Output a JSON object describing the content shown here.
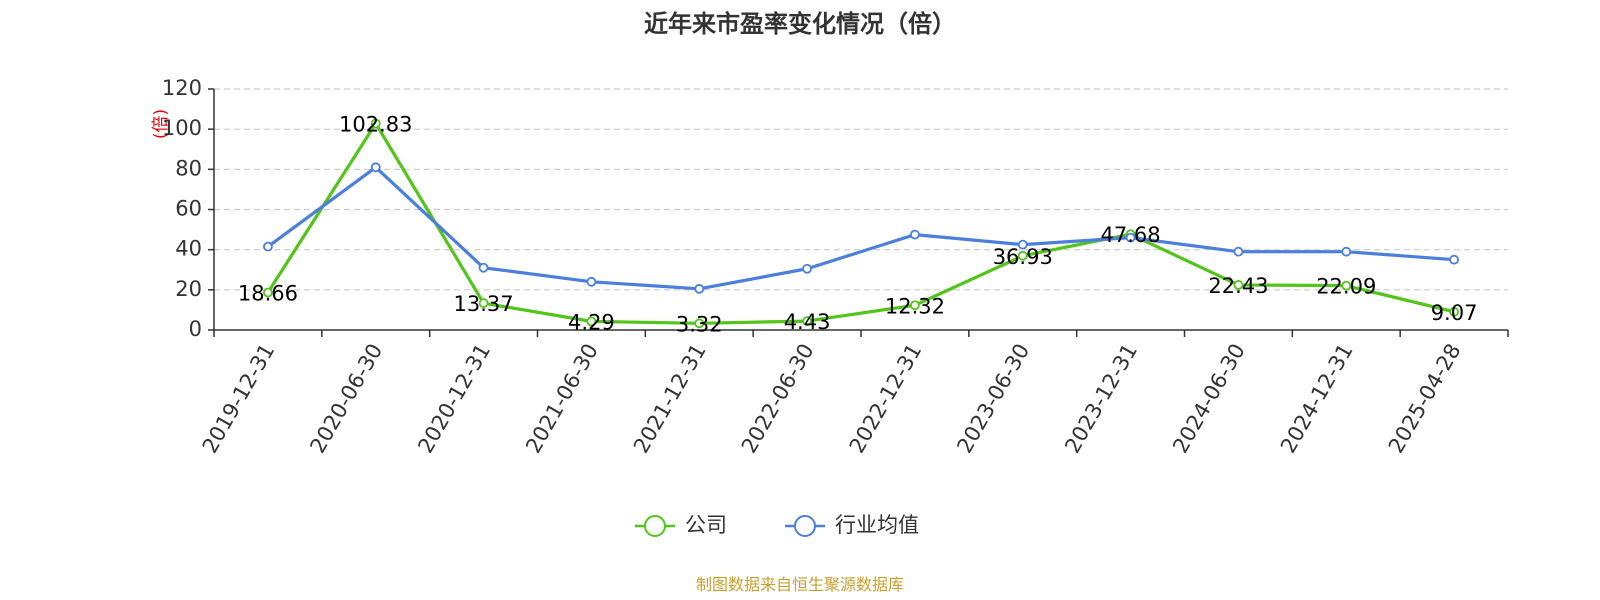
{
  "chart_data": {
    "type": "line",
    "title": "近年来市盈率变化情况（倍）",
    "ylabel": "(倍)",
    "xlabel": "",
    "ylim": [
      0,
      120
    ],
    "yticks": [
      0,
      20,
      40,
      60,
      80,
      100,
      120
    ],
    "grid": true,
    "legend_position": "bottom",
    "categories": [
      "2019-12-31",
      "2020-06-30",
      "2020-12-31",
      "2021-06-30",
      "2021-12-31",
      "2022-06-30",
      "2022-12-31",
      "2023-06-30",
      "2023-12-31",
      "2024-06-30",
      "2024-12-31",
      "2025-04-28"
    ],
    "series": [
      {
        "name": "公司",
        "color": "#52c41a",
        "show_labels": true,
        "values": [
          18.66,
          102.83,
          13.37,
          4.29,
          3.32,
          4.43,
          12.32,
          36.93,
          47.68,
          22.43,
          22.09,
          9.07
        ],
        "labels": [
          "18.66",
          "102.83",
          "13.37",
          "4.29",
          "3.32",
          "4.43",
          "12.32",
          "36.93",
          "47.68",
          "22.43",
          "22.09",
          "9.07"
        ]
      },
      {
        "name": "行业均值",
        "color": "#4a7fdc",
        "show_labels": false,
        "values": [
          41.5,
          81.0,
          31.0,
          24.0,
          20.5,
          30.5,
          47.5,
          42.5,
          46.0,
          39.0,
          39.0,
          35.0
        ]
      }
    ]
  },
  "footer": {
    "source": "制图数据来自恒生聚源数据库"
  }
}
